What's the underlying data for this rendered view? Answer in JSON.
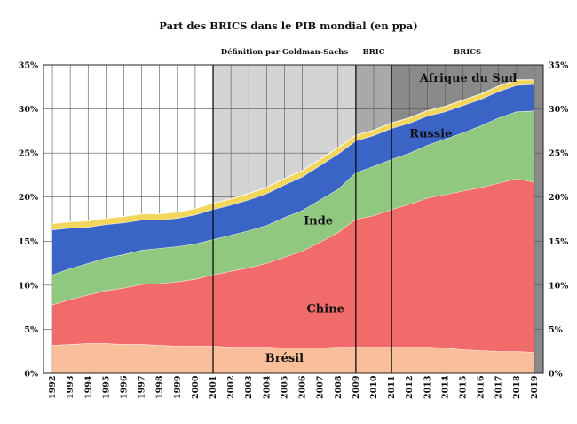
{
  "chart_data": {
    "type": "area",
    "stacked": true,
    "title": "Part des BRICS dans le PIB mondial (en ppa)",
    "x": [
      1992,
      1993,
      1994,
      1995,
      1996,
      1997,
      1998,
      1999,
      2000,
      2001,
      2002,
      2003,
      2004,
      2005,
      2006,
      2007,
      2008,
      2009,
      2010,
      2011,
      2012,
      2013,
      2014,
      2015,
      2016,
      2017,
      2018,
      2019
    ],
    "x_tick_labels": [
      "1992",
      "1993",
      "1994",
      "1995",
      "1996",
      "1997",
      "1998",
      "1999",
      "2000",
      "2001",
      "2002",
      "2003",
      "2004",
      "2005",
      "2006",
      "2007",
      "2008",
      "2009",
      "2010",
      "2011",
      "2012",
      "2013",
      "2014",
      "2015",
      "2016",
      "2017",
      "2018",
      "2019"
    ],
    "ylim": [
      0,
      35
    ],
    "y_ticks": [
      0,
      5,
      10,
      15,
      20,
      25,
      30,
      35
    ],
    "y_tick_labels": [
      "0%",
      "5%",
      "10%",
      "15%",
      "20%",
      "25%",
      "30%",
      "35%"
    ],
    "grid": true,
    "series": [
      {
        "name": "Brésil",
        "color": "#f9bf9b",
        "values": [
          3.2,
          3.3,
          3.4,
          3.4,
          3.3,
          3.3,
          3.2,
          3.1,
          3.1,
          3.1,
          3.0,
          3.0,
          3.0,
          2.9,
          2.9,
          2.9,
          3.0,
          3.0,
          3.0,
          3.0,
          3.0,
          3.0,
          2.9,
          2.7,
          2.6,
          2.5,
          2.5,
          2.4
        ]
      },
      {
        "name": "Chine",
        "color": "#f26b6b",
        "values": [
          4.6,
          5.1,
          5.5,
          6.0,
          6.4,
          6.8,
          7.0,
          7.3,
          7.6,
          8.1,
          8.6,
          9.0,
          9.5,
          10.3,
          11.0,
          12.0,
          13.0,
          14.5,
          14.9,
          15.6,
          16.2,
          16.9,
          17.4,
          18.0,
          18.5,
          19.1,
          19.6,
          19.3
        ]
      },
      {
        "name": "Inde",
        "color": "#8fc87e",
        "values": [
          3.4,
          3.5,
          3.6,
          3.7,
          3.8,
          3.9,
          4.0,
          4.0,
          4.0,
          4.0,
          4.1,
          4.2,
          4.3,
          4.5,
          4.6,
          4.8,
          4.9,
          5.3,
          5.6,
          5.7,
          5.8,
          6.0,
          6.3,
          6.6,
          7.0,
          7.4,
          7.6,
          8.1
        ]
      },
      {
        "name": "Russie",
        "color": "#3b64c7",
        "values": [
          5.1,
          4.6,
          4.1,
          3.8,
          3.6,
          3.4,
          3.2,
          3.2,
          3.3,
          3.4,
          3.4,
          3.5,
          3.6,
          3.7,
          3.8,
          3.9,
          4.0,
          3.6,
          3.5,
          3.5,
          3.4,
          3.3,
          3.1,
          3.1,
          3.0,
          3.0,
          3.0,
          3.0
        ]
      },
      {
        "name": "Afrique du Sud",
        "color": "#f3d75c",
        "values": [
          0.7,
          0.7,
          0.7,
          0.7,
          0.7,
          0.7,
          0.7,
          0.7,
          0.7,
          0.7,
          0.7,
          0.7,
          0.7,
          0.7,
          0.7,
          0.7,
          0.7,
          0.6,
          0.6,
          0.6,
          0.6,
          0.6,
          0.6,
          0.6,
          0.6,
          0.6,
          0.6,
          0.5
        ]
      }
    ],
    "periods": [
      {
        "label": "Définition par Goldman-Sachs",
        "from": 2001,
        "to": 2009,
        "shade": "#d4d4d4"
      },
      {
        "label": "BRIC",
        "from": 2009,
        "to": 2011,
        "shade": "#a9a9a9"
      },
      {
        "label": "BRICS",
        "from": 2011,
        "to": 2019,
        "shade": "#8a8a8a"
      }
    ],
    "series_labels": [
      {
        "text": "Brésil",
        "x": 2005.0,
        "y": 1.3
      },
      {
        "text": "Chine",
        "x": 2007.3,
        "y": 6.9
      },
      {
        "text": "Inde",
        "x": 2006.9,
        "y": 16.9
      },
      {
        "text": "Russie",
        "x": 2013.2,
        "y": 26.8
      },
      {
        "text": "Afrique du Sud",
        "x": 2015.3,
        "y": 33.1
      }
    ]
  }
}
